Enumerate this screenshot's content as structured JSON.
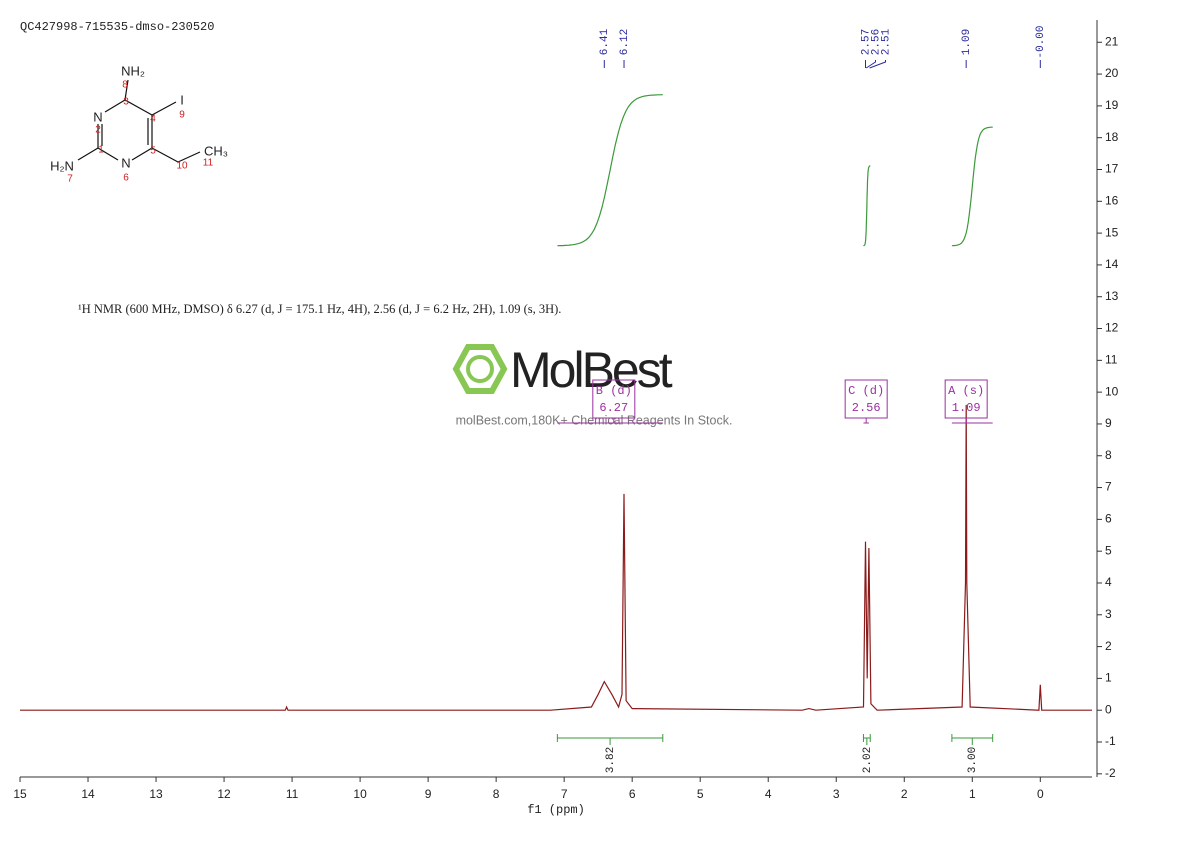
{
  "chart_data": {
    "type": "spectrum",
    "title": "QC427998-715535-dmso-230520",
    "description": "¹H NMR (600 MHz, DMSO) δ 6.27 (d, J = 175.1 Hz, 4H), 2.56 (d, J = 6.2 Hz, 2H), 1.09 (s, 3H).",
    "xlabel": "f1 (ppm)",
    "color": "#8b1a1a",
    "x": [
      15,
      11.1,
      11.08,
      11.06,
      7.2,
      6.6,
      6.5,
      6.41,
      6.3,
      6.2,
      6.15,
      6.12,
      6.09,
      6.0,
      3.5,
      3.4,
      3.3,
      2.6,
      2.57,
      2.545,
      2.52,
      2.49,
      2.4,
      1.15,
      1.1,
      1.09,
      1.08,
      1.03,
      0.02,
      0,
      -0.02,
      -0.76
    ],
    "values": [
      0,
      0,
      0.1,
      0,
      0,
      0.1,
      0.5,
      0.9,
      0.5,
      0.1,
      0.5,
      6.8,
      0.3,
      0.05,
      0,
      0.05,
      0,
      0.1,
      5.3,
      1,
      5.1,
      0.2,
      0,
      0.1,
      4,
      9.6,
      4,
      0.1,
      0,
      0.8,
      0,
      0
    ],
    "xlim": [
      15,
      -0.76
    ],
    "xticks": [
      15,
      14,
      13,
      12,
      11,
      10,
      9,
      8,
      7,
      6,
      5,
      4,
      3,
      2,
      1,
      0
    ],
    "ylim": [
      -2.1,
      21.7
    ],
    "yticks": [
      -2,
      -1,
      0,
      1,
      2,
      3,
      4,
      5,
      6,
      7,
      8,
      9,
      10,
      11,
      12,
      13,
      14,
      15,
      16,
      17,
      18,
      19,
      20,
      21
    ],
    "peak_labels": [
      6.41,
      6.12,
      2.57,
      2.56,
      2.51,
      1.09,
      {
        "value": 0,
        "label": "-0.00"
      }
    ],
    "integral_values": [
      3.82,
      2.02,
      {
        "value": 3,
        "label": "3.00"
      }
    ],
    "integral_ranges": [
      [
        7.1,
        5.55
      ],
      [
        2.6,
        2.5
      ],
      [
        1.3,
        0.7
      ]
    ],
    "multiplet_labels": [
      "B (d)",
      "C (d)",
      "A (s)"
    ],
    "multiplet_shifts": [
      6.27,
      2.56,
      1.09
    ],
    "multiplet_ranges": [
      [
        7.1,
        5.55
      ],
      [
        2.6,
        2.52
      ],
      [
        1.3,
        0.7
      ]
    ]
  },
  "structure": {
    "atoms": [
      "NH₂",
      "N",
      "N",
      "H₂N",
      "I",
      "CH₃"
    ],
    "numbers": [
      1,
      2,
      3,
      4,
      5,
      6,
      7,
      8,
      9,
      10,
      11
    ]
  },
  "watermark": {
    "brand": "MolBest",
    "tagline": "molBest.com,180K+ Chemical Reagents In Stock."
  }
}
